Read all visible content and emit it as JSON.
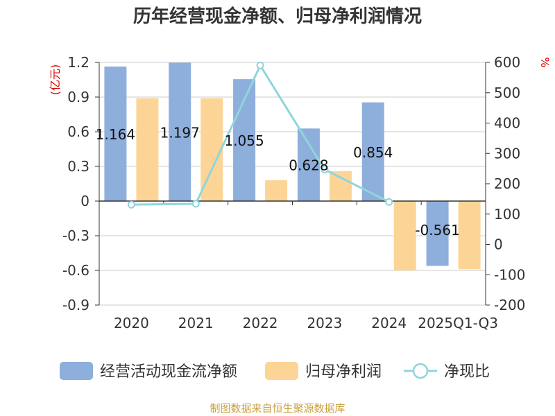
{
  "chart_data": {
    "type": "bar",
    "title": "历年经营现金净额、归母净利润情况",
    "categories": [
      "2020",
      "2021",
      "2022",
      "2023",
      "2024",
      "2025Q1-Q3"
    ],
    "left_axis": {
      "unit": "(亿元)",
      "ylim": [
        -0.9,
        1.2
      ],
      "ticks": [
        "1.2",
        "0.9",
        "0.6",
        "0.3",
        "0",
        "-0.3",
        "-0.6",
        "-0.9"
      ],
      "tick_values": [
        1.2,
        0.9,
        0.6,
        0.3,
        0,
        -0.3,
        -0.6,
        -0.9
      ]
    },
    "right_axis": {
      "unit": "%",
      "ylim": [
        -200,
        600
      ],
      "ticks": [
        "600",
        "500",
        "400",
        "300",
        "200",
        "100",
        "0",
        "-100",
        "-200"
      ],
      "tick_values": [
        600,
        500,
        400,
        300,
        200,
        100,
        0,
        -100,
        -200
      ]
    },
    "series": [
      {
        "name": "经营活动现金流净额",
        "type": "bar",
        "axis": "left",
        "color": "#8eaedc",
        "values": [
          1.164,
          1.197,
          1.055,
          0.628,
          0.854,
          -0.561
        ],
        "labels": [
          "1.164",
          "1.197",
          "1.055",
          "0.628",
          "0.854",
          "-0.561"
        ]
      },
      {
        "name": "归母净利润",
        "type": "bar",
        "axis": "left",
        "color": "#fcd596",
        "values": [
          0.89,
          0.89,
          0.18,
          0.26,
          -0.6,
          -0.59
        ]
      },
      {
        "name": "净现比",
        "type": "line",
        "axis": "right",
        "color": "#8fd5dc",
        "values": [
          131,
          134,
          590,
          247,
          140,
          null
        ]
      }
    ],
    "source": "制图数据来自恒生聚源数据库"
  }
}
